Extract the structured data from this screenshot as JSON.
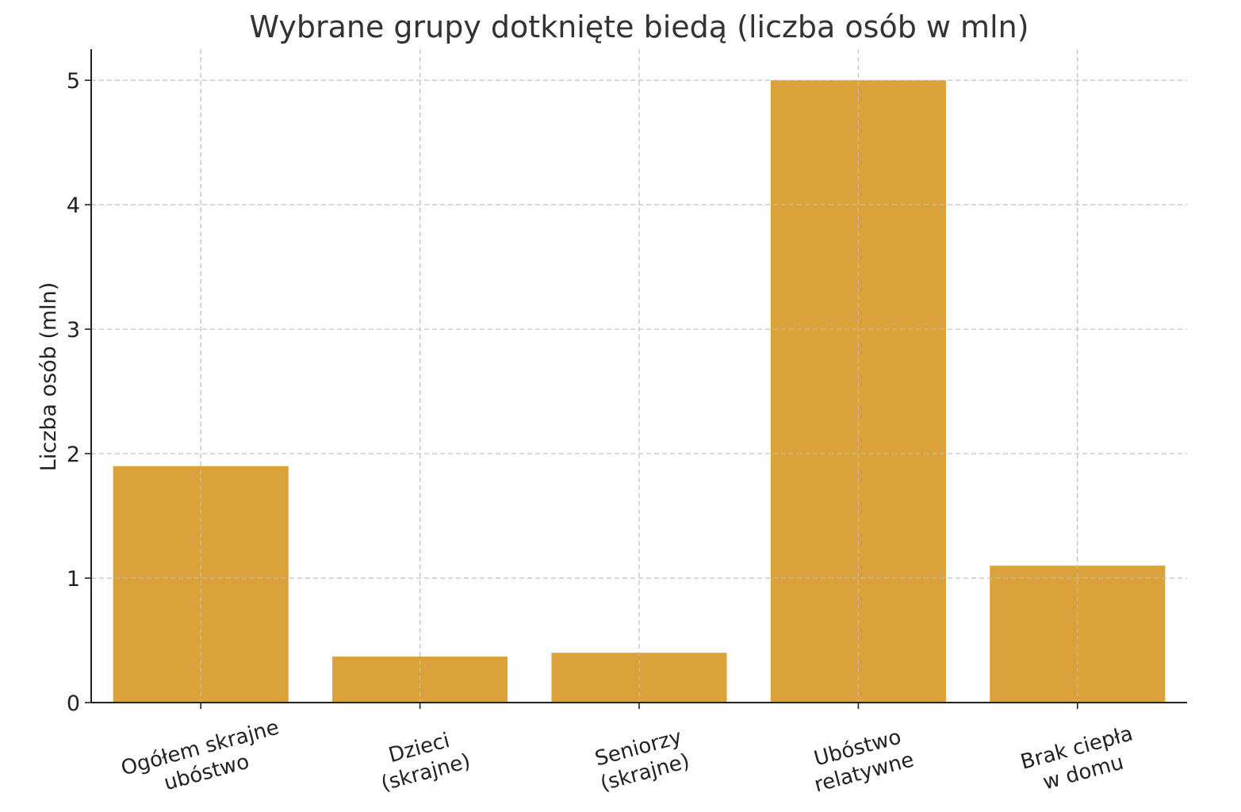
{
  "chart_data": {
    "type": "bar",
    "title": "Wybrane grupy dotknięte biedą (liczba osób w mln)",
    "xlabel": "",
    "ylabel": "Liczba osób (mln)",
    "categories": [
      [
        "Ogółem skrajne",
        "ubóstwo"
      ],
      [
        "Dzieci",
        "(skrajne)"
      ],
      [
        "Seniorzy",
        "(skrajne)"
      ],
      [
        "Ubóstwo",
        "relatywne"
      ],
      [
        "Brak ciepła",
        "w domu"
      ]
    ],
    "values": [
      1.9,
      0.37,
      0.4,
      5.0,
      1.1
    ],
    "ylim": [
      0,
      5.25
    ],
    "yticks": [
      0,
      1,
      2,
      3,
      4,
      5
    ],
    "grid": true,
    "bar_color": "#dba23b"
  }
}
